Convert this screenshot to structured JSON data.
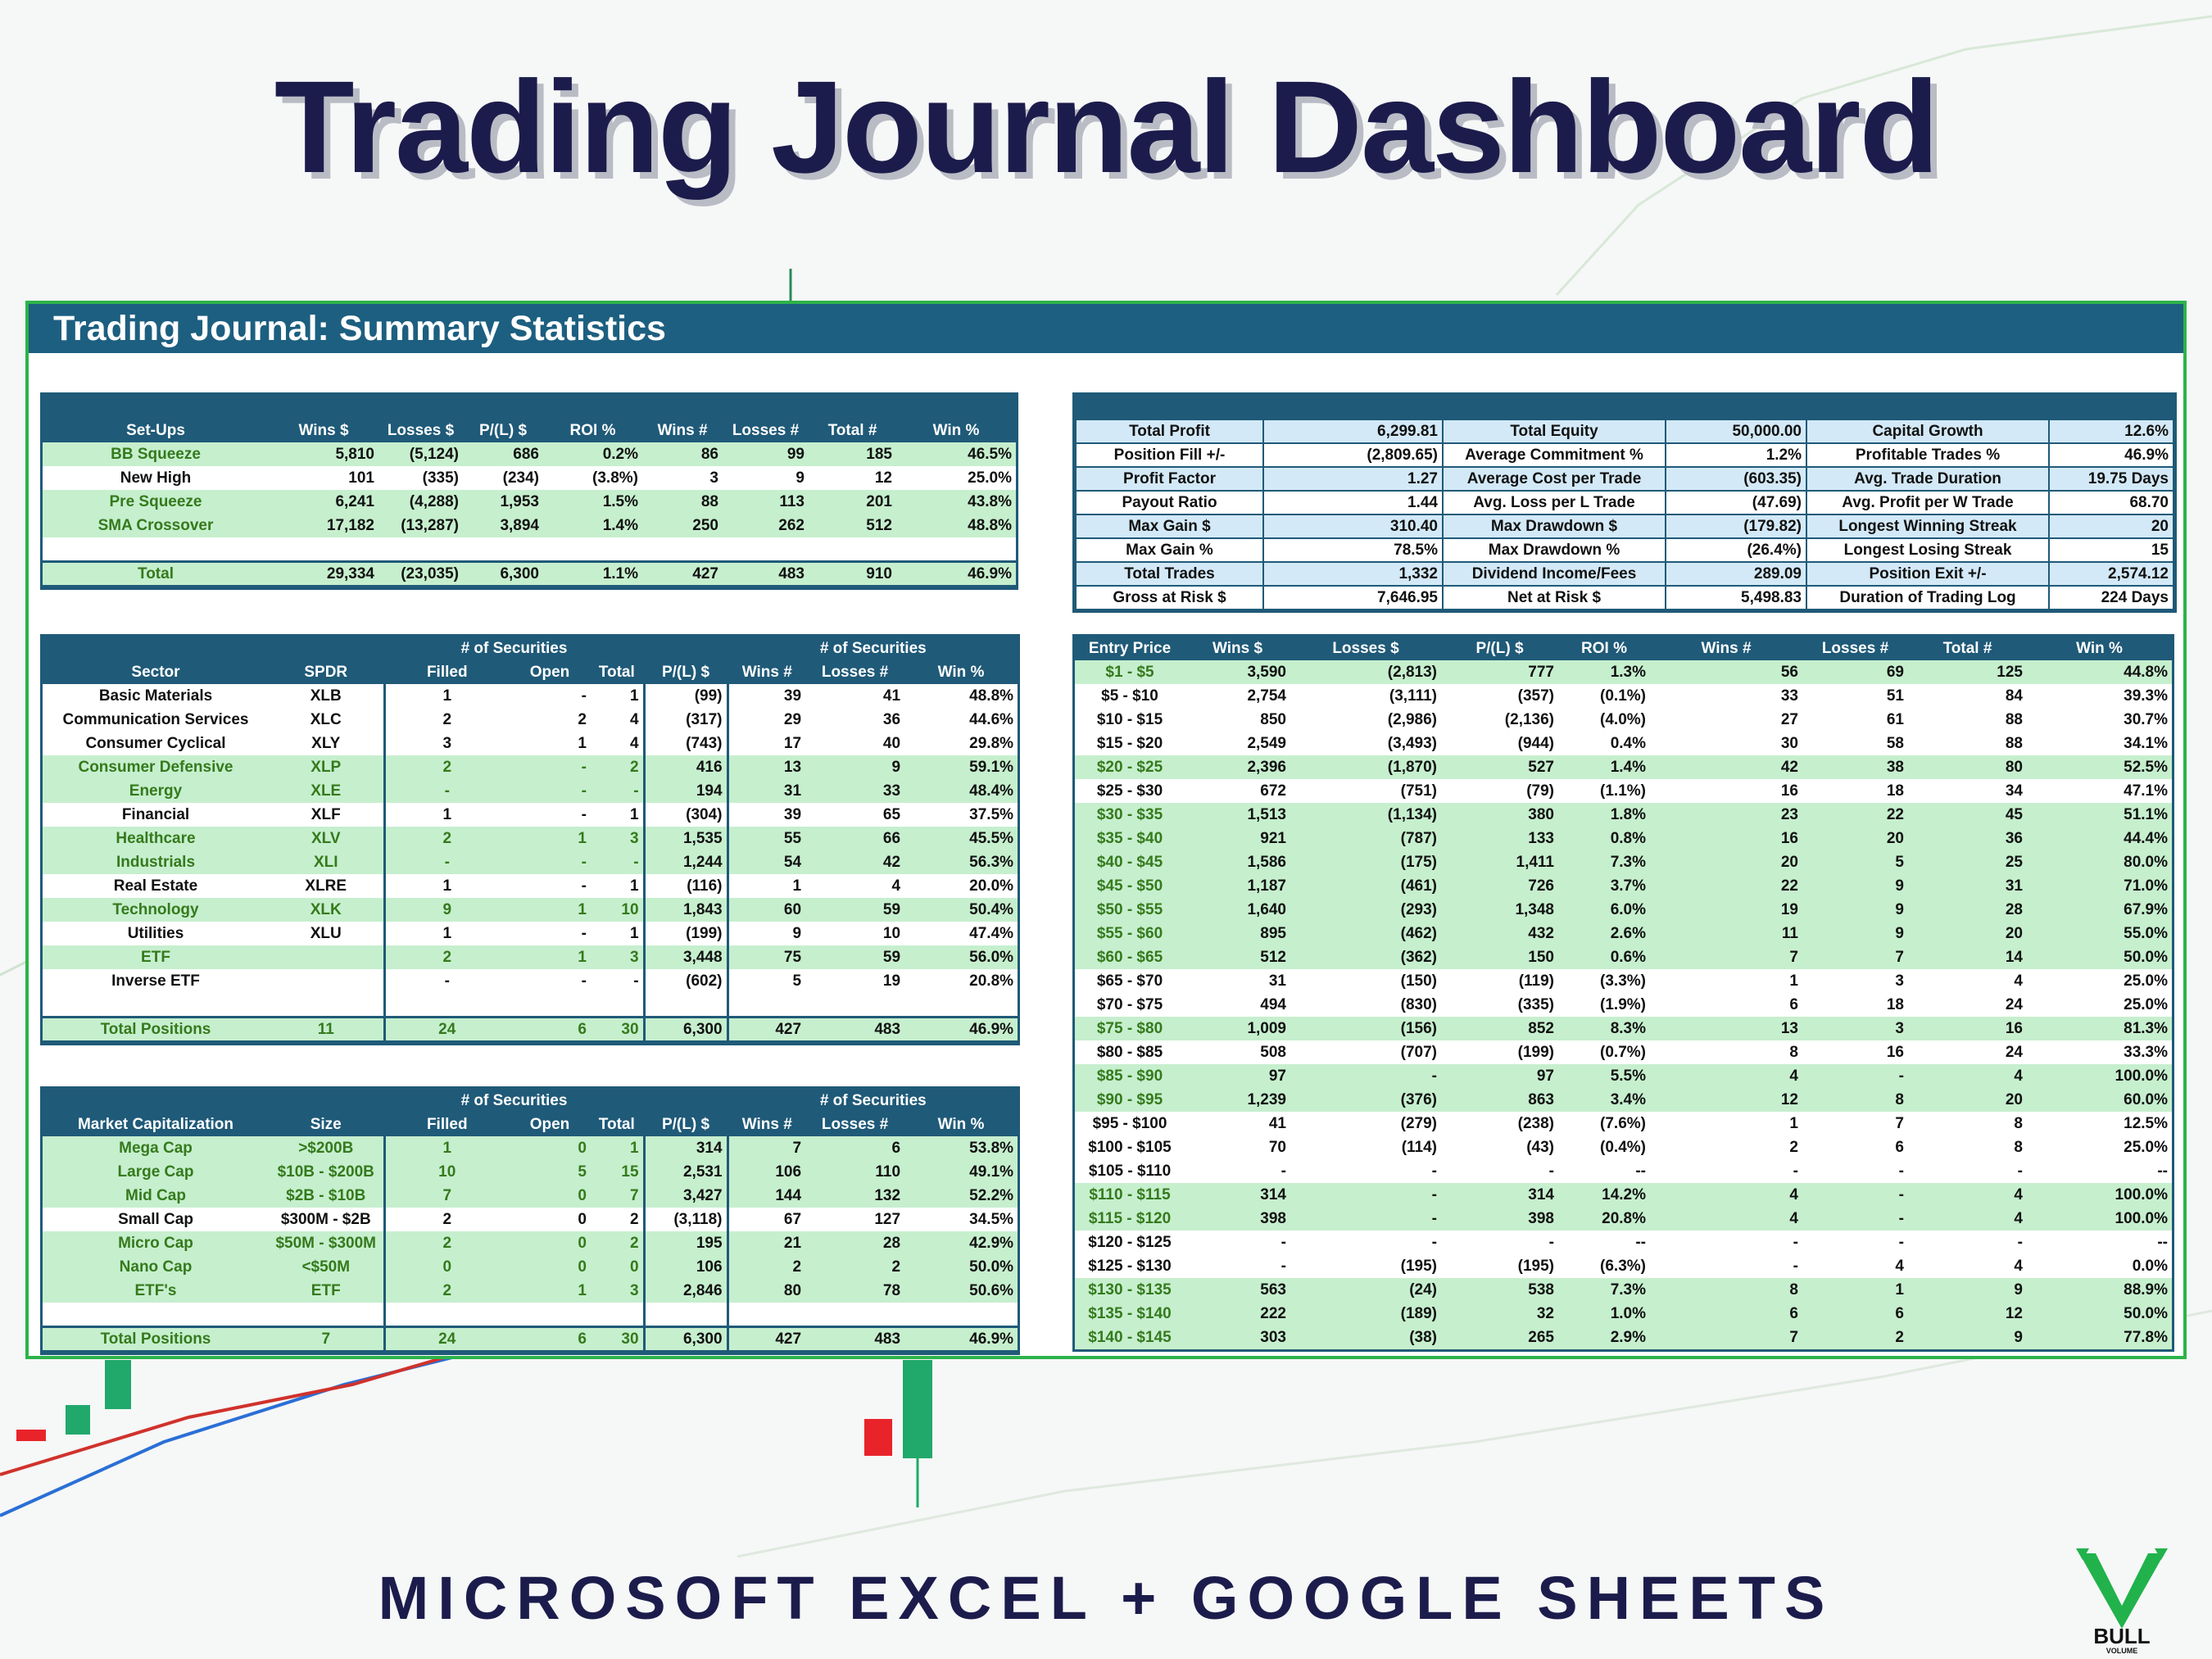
{
  "header": {
    "title": "Trading Journal Dashboard"
  },
  "panel": {
    "title": "Trading Journal: Summary Statistics"
  },
  "footer": {
    "subtitle": "MICROSOFT EXCEL + GOOGLE SHEETS"
  },
  "logo": {
    "text": "BULL",
    "subtext": "VOLUME"
  },
  "tables": {
    "setups": {
      "columns": [
        "Set-Ups",
        "Wins $",
        "Losses $",
        "P/(L) $",
        "ROI %",
        "Wins #",
        "Losses #",
        "Total #",
        "Win %"
      ],
      "rows": [
        [
          "BB Squeeze",
          "5,810",
          "(5,124)",
          "686",
          "0.2%",
          "86",
          "99",
          "185",
          "46.5%"
        ],
        [
          "New High",
          "101",
          "(335)",
          "(234)",
          "(3.8%)",
          "3",
          "9",
          "12",
          "25.0%"
        ],
        [
          "Pre Squeeze",
          "6,241",
          "(4,288)",
          "1,953",
          "1.5%",
          "88",
          "113",
          "201",
          "43.8%"
        ],
        [
          "SMA Crossover",
          "17,182",
          "(13,287)",
          "3,894",
          "1.4%",
          "250",
          "262",
          "512",
          "48.8%"
        ],
        null
      ],
      "total": [
        "Total",
        "29,334",
        "(23,035)",
        "6,300",
        "1.1%",
        "427",
        "483",
        "910",
        "46.9%"
      ],
      "highlighted_rows": [
        0,
        2,
        3
      ],
      "highlight_color": "#c6efce"
    },
    "stats": {
      "rows": [
        [
          "Total Profit",
          "6,299.81",
          "Total Equity",
          "50,000.00",
          "Capital Growth",
          "12.6%"
        ],
        [
          "Position Fill +/-",
          "(2,809.65)",
          "Average Commitment %",
          "1.2%",
          "Profitable Trades %",
          "46.9%"
        ],
        [
          "Profit Factor",
          "1.27",
          "Average Cost per Trade",
          "(603.35)",
          "Avg. Trade Duration",
          "19.75 Days"
        ],
        [
          "Payout Ratio",
          "1.44",
          "Avg. Loss per L Trade",
          "(47.69)",
          "Avg. Profit per W Trade",
          "68.70"
        ],
        [
          "Max Gain $",
          "310.40",
          "Max Drawdown $",
          "(179.82)",
          "Longest Winning Streak",
          "20"
        ],
        [
          "Max Gain %",
          "78.5%",
          "Max Drawdown %",
          "(26.4%)",
          "Longest Losing Streak",
          "15"
        ],
        [
          "Total Trades",
          "1,332",
          "Dividend Income/Fees",
          "289.09",
          "Position Exit +/-",
          "2,574.12"
        ],
        [
          "Gross at Risk $",
          "7,646.95",
          "Net at Risk $",
          "5,498.83",
          "Duration of Trading Log",
          "224 Days"
        ]
      ],
      "highlighted_rows": [
        0,
        2,
        4,
        6
      ],
      "highlight_color": "#d3e9f7"
    },
    "sector": {
      "group_headers": [
        "# of Securities",
        "# of Securities"
      ],
      "columns": [
        "Sector",
        "SPDR",
        "Filled",
        "Open",
        "Total",
        "P/(L) $",
        "Wins #",
        "Losses #",
        "Win %"
      ],
      "rows": [
        [
          "Basic Materials",
          "XLB",
          "1",
          "-",
          "1",
          "(99)",
          "39",
          "41",
          "48.8%"
        ],
        [
          "Communication Services",
          "XLC",
          "2",
          "2",
          "4",
          "(317)",
          "29",
          "36",
          "44.6%"
        ],
        [
          "Consumer Cyclical",
          "XLY",
          "3",
          "1",
          "4",
          "(743)",
          "17",
          "40",
          "29.8%"
        ],
        [
          "Consumer Defensive",
          "XLP",
          "2",
          "-",
          "2",
          "416",
          "13",
          "9",
          "59.1%"
        ],
        [
          "Energy",
          "XLE",
          "-",
          "-",
          "-",
          "194",
          "31",
          "33",
          "48.4%"
        ],
        [
          "Financial",
          "XLF",
          "1",
          "-",
          "1",
          "(304)",
          "39",
          "65",
          "37.5%"
        ],
        [
          "Healthcare",
          "XLV",
          "2",
          "1",
          "3",
          "1,535",
          "55",
          "66",
          "45.5%"
        ],
        [
          "Industrials",
          "XLI",
          "-",
          "-",
          "-",
          "1,244",
          "54",
          "42",
          "56.3%"
        ],
        [
          "Real Estate",
          "XLRE",
          "1",
          "-",
          "1",
          "(116)",
          "1",
          "4",
          "20.0%"
        ],
        [
          "Technology",
          "XLK",
          "9",
          "1",
          "10",
          "1,843",
          "60",
          "59",
          "50.4%"
        ],
        [
          "Utilities",
          "XLU",
          "1",
          "-",
          "1",
          "(199)",
          "9",
          "10",
          "47.4%"
        ],
        [
          "ETF",
          null,
          "2",
          "1",
          "3",
          "3,448",
          "75",
          "59",
          "56.0%"
        ],
        [
          "Inverse ETF",
          null,
          "-",
          "-",
          "-",
          "(602)",
          "5",
          "19",
          "20.8%"
        ],
        null
      ],
      "total": [
        "Total Positions",
        "11",
        "24",
        "6",
        "30",
        "6,300",
        "427",
        "483",
        "46.9%"
      ],
      "highlighted_rows": [
        3,
        4,
        6,
        7,
        9,
        11
      ],
      "highlight_color": "#c6efce"
    },
    "market_cap": {
      "group_headers": [
        "# of Securities",
        "# of Securities"
      ],
      "columns": [
        "Market Capitalization",
        "Size",
        "Filled",
        "Open",
        "Total",
        "P/(L) $",
        "Wins #",
        "Losses #",
        "Win %"
      ],
      "rows": [
        [
          "Mega Cap",
          ">$200B",
          "1",
          "0",
          "1",
          "314",
          "7",
          "6",
          "53.8%"
        ],
        [
          "Large Cap",
          "$10B - $200B",
          "10",
          "5",
          "15",
          "2,531",
          "106",
          "110",
          "49.1%"
        ],
        [
          "Mid Cap",
          "$2B - $10B",
          "7",
          "0",
          "7",
          "3,427",
          "144",
          "132",
          "52.2%"
        ],
        [
          "Small Cap",
          "$300M - $2B",
          "2",
          "0",
          "2",
          "(3,118)",
          "67",
          "127",
          "34.5%"
        ],
        [
          "Micro Cap",
          "$50M - $300M",
          "2",
          "0",
          "2",
          "195",
          "21",
          "28",
          "42.9%"
        ],
        [
          "Nano Cap",
          "<$50M",
          "0",
          "0",
          "0",
          "106",
          "2",
          "2",
          "50.0%"
        ],
        [
          "ETF's",
          "ETF",
          "2",
          "1",
          "3",
          "2,846",
          "80",
          "78",
          "50.6%"
        ],
        null
      ],
      "total": [
        "Total Positions",
        "7",
        "24",
        "6",
        "30",
        "6,300",
        "427",
        "483",
        "46.9%"
      ],
      "highlighted_rows": [
        0,
        1,
        2,
        4,
        5,
        6
      ],
      "highlight_color": "#c6efce"
    },
    "entry_price": {
      "columns": [
        "Entry Price",
        "Wins $",
        "Losses $",
        "P/(L) $",
        "ROI %",
        "Wins #",
        "Losses #",
        "Total #",
        "Win %"
      ],
      "rows": [
        [
          "$1 - $5",
          "3,590",
          "(2,813)",
          "777",
          "1.3%",
          "56",
          "69",
          "125",
          "44.8%"
        ],
        [
          "$5 - $10",
          "2,754",
          "(3,111)",
          "(357)",
          "(0.1%)",
          "33",
          "51",
          "84",
          "39.3%"
        ],
        [
          "$10 - $15",
          "850",
          "(2,986)",
          "(2,136)",
          "(4.0%)",
          "27",
          "61",
          "88",
          "30.7%"
        ],
        [
          "$15 - $20",
          "2,549",
          "(3,493)",
          "(944)",
          "0.4%",
          "30",
          "58",
          "88",
          "34.1%"
        ],
        [
          "$20 - $25",
          "2,396",
          "(1,870)",
          "527",
          "1.4%",
          "42",
          "38",
          "80",
          "52.5%"
        ],
        [
          "$25 - $30",
          "672",
          "(751)",
          "(79)",
          "(1.1%)",
          "16",
          "18",
          "34",
          "47.1%"
        ],
        [
          "$30 - $35",
          "1,513",
          "(1,134)",
          "380",
          "1.8%",
          "23",
          "22",
          "45",
          "51.1%"
        ],
        [
          "$35 - $40",
          "921",
          "(787)",
          "133",
          "0.8%",
          "16",
          "20",
          "36",
          "44.4%"
        ],
        [
          "$40 - $45",
          "1,586",
          "(175)",
          "1,411",
          "7.3%",
          "20",
          "5",
          "25",
          "80.0%"
        ],
        [
          "$45 - $50",
          "1,187",
          "(461)",
          "726",
          "3.7%",
          "22",
          "9",
          "31",
          "71.0%"
        ],
        [
          "$50 - $55",
          "1,640",
          "(293)",
          "1,348",
          "6.0%",
          "19",
          "9",
          "28",
          "67.9%"
        ],
        [
          "$55 - $60",
          "895",
          "(462)",
          "432",
          "2.6%",
          "11",
          "9",
          "20",
          "55.0%"
        ],
        [
          "$60 - $65",
          "512",
          "(362)",
          "150",
          "0.6%",
          "7",
          "7",
          "14",
          "50.0%"
        ],
        [
          "$65 - $70",
          "31",
          "(150)",
          "(119)",
          "(3.3%)",
          "1",
          "3",
          "4",
          "25.0%"
        ],
        [
          "$70 - $75",
          "494",
          "(830)",
          "(335)",
          "(1.9%)",
          "6",
          "18",
          "24",
          "25.0%"
        ],
        [
          "$75 - $80",
          "1,009",
          "(156)",
          "852",
          "8.3%",
          "13",
          "3",
          "16",
          "81.3%"
        ],
        [
          "$80 - $85",
          "508",
          "(707)",
          "(199)",
          "(0.7%)",
          "8",
          "16",
          "24",
          "33.3%"
        ],
        [
          "$85 - $90",
          "97",
          "-",
          "97",
          "5.5%",
          "4",
          "-",
          "4",
          "100.0%"
        ],
        [
          "$90 - $95",
          "1,239",
          "(376)",
          "863",
          "3.4%",
          "12",
          "8",
          "20",
          "60.0%"
        ],
        [
          "$95 - $100",
          "41",
          "(279)",
          "(238)",
          "(7.6%)",
          "1",
          "7",
          "8",
          "12.5%"
        ],
        [
          "$100 - $105",
          "70",
          "(114)",
          "(43)",
          "(0.4%)",
          "2",
          "6",
          "8",
          "25.0%"
        ],
        [
          "$105 - $110",
          "-",
          "-",
          "-",
          "--",
          "-",
          "-",
          "-",
          "--"
        ],
        [
          "$110 - $115",
          "314",
          "-",
          "314",
          "14.2%",
          "4",
          "-",
          "4",
          "100.0%"
        ],
        [
          "$115 - $120",
          "398",
          "-",
          "398",
          "20.8%",
          "4",
          "-",
          "4",
          "100.0%"
        ],
        [
          "$120 - $125",
          "-",
          "-",
          "-",
          "--",
          "-",
          "-",
          "-",
          "--"
        ],
        [
          "$125 - $130",
          "-",
          "(195)",
          "(195)",
          "(6.3%)",
          "-",
          "4",
          "4",
          "0.0%"
        ],
        [
          "$130 - $135",
          "563",
          "(24)",
          "538",
          "7.3%",
          "8",
          "1",
          "9",
          "88.9%"
        ],
        [
          "$135 - $140",
          "222",
          "(189)",
          "32",
          "1.0%",
          "6",
          "6",
          "12",
          "50.0%"
        ],
        [
          "$140 - $145",
          "303",
          "(38)",
          "265",
          "2.9%",
          "7",
          "2",
          "9",
          "77.8%"
        ]
      ],
      "highlighted_rows": [
        0,
        4,
        6,
        7,
        8,
        9,
        10,
        11,
        12,
        15,
        17,
        18,
        22,
        23,
        26,
        27,
        28
      ],
      "highlight_color": "#c6efce"
    }
  }
}
